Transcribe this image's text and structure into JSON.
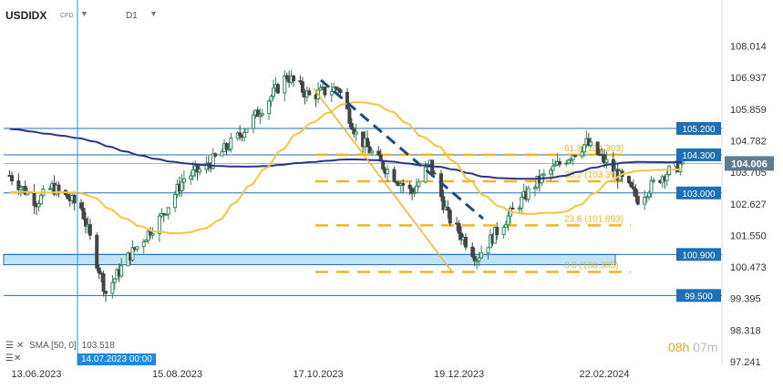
{
  "header": {
    "symbol": "USDIDX",
    "symbol_type": "CFD",
    "timeframe": "D1",
    "dropdown_icon": "caret-down-icon"
  },
  "indicator": {
    "legend_text": "SMA [50, 0]",
    "legend_value": "103.518",
    "icons": [
      "menu-icon",
      "close-icon"
    ]
  },
  "crosshair": {
    "date_label": "14.07.2023 00:00"
  },
  "timer": {
    "hours": "08h",
    "minutes": "07m"
  },
  "colors": {
    "bull_candle": "#2e8b57",
    "bear_candle": "#444444",
    "sma_slow": "#2b3586",
    "sma_fast": "#f3c63f",
    "horizontal_line": "#1e6fb3",
    "label_bg": "#1e6fb3",
    "current_price_bg": "#607d8b",
    "fib": "#f0b429",
    "trendline": "#1b4f7a",
    "zone_fill": "#b3dcf5",
    "crosshair": "#2196f3"
  },
  "chart_data": {
    "type": "candlestick",
    "x_tick_labels": [
      "13.06.2023",
      "15.08.2023",
      "17.10.2023",
      "19.12.2023",
      "22.02.2024"
    ],
    "y_tick_labels": [
      "108.014",
      "106.937",
      "105.859",
      "104.782",
      "103.705",
      "102.627",
      "101.550",
      "100.473",
      "99.395",
      "98.318",
      "97.241"
    ],
    "ylim": [
      97.0,
      108.6
    ],
    "grid": false,
    "series": {
      "approx_daily_path": [
        {
          "date": "2023-06-01",
          "value": 103.6
        },
        {
          "date": "2023-06-13",
          "value": 102.7
        },
        {
          "date": "2023-06-20",
          "value": 103.2
        },
        {
          "date": "2023-07-03",
          "value": 102.5
        },
        {
          "date": "2023-07-14",
          "value": 99.6
        },
        {
          "date": "2023-07-24",
          "value": 100.8
        },
        {
          "date": "2023-08-08",
          "value": 102.2
        },
        {
          "date": "2023-08-18",
          "value": 103.5
        },
        {
          "date": "2023-08-28",
          "value": 103.9
        },
        {
          "date": "2023-09-11",
          "value": 104.9
        },
        {
          "date": "2023-09-25",
          "value": 106.2
        },
        {
          "date": "2023-10-03",
          "value": 107.0
        },
        {
          "date": "2023-10-13",
          "value": 106.3
        },
        {
          "date": "2023-10-26",
          "value": 106.6
        },
        {
          "date": "2023-11-03",
          "value": 105.0
        },
        {
          "date": "2023-11-14",
          "value": 104.0
        },
        {
          "date": "2023-11-28",
          "value": 103.0
        },
        {
          "date": "2023-12-06",
          "value": 104.0
        },
        {
          "date": "2023-12-14",
          "value": 102.2
        },
        {
          "date": "2023-12-27",
          "value": 100.8
        },
        {
          "date": "2024-01-08",
          "value": 102.0
        },
        {
          "date": "2024-01-22",
          "value": 103.3
        },
        {
          "date": "2024-02-02",
          "value": 104.0
        },
        {
          "date": "2024-02-14",
          "value": 104.7
        },
        {
          "date": "2024-02-26",
          "value": 103.8
        },
        {
          "date": "2024-03-08",
          "value": 102.8
        },
        {
          "date": "2024-03-19",
          "value": 103.6
        },
        {
          "date": "2024-03-28",
          "value": 104.006
        }
      ]
    },
    "moving_averages": [
      {
        "name": "SMA [50, 0]",
        "value": 103.518
      }
    ],
    "current_price": 104.006,
    "horizontal_levels": [
      105.2,
      104.3,
      103.0,
      100.9,
      99.5
    ],
    "support_zone": [
      100.55,
      100.9
    ],
    "fibonacci": [
      {
        "label": "61.8 (104.303)",
        "level": 104.303
      },
      {
        "label": "38.2 (103.397)",
        "level": 103.397
      },
      {
        "label": "23.6 (101.893)",
        "level": 101.893
      },
      {
        "label": "0.0 (100.305)",
        "level": 100.305
      }
    ]
  }
}
